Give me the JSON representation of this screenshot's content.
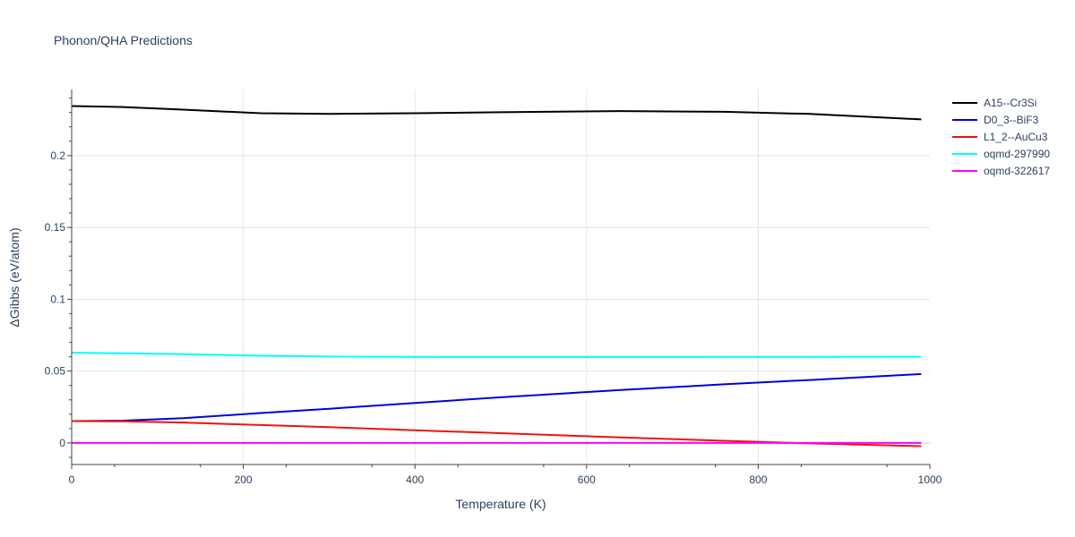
{
  "chart_data": {
    "type": "line",
    "title": "Phonon/QHA Predictions",
    "xlabel": "Temperature (K)",
    "ylabel": "ΔGibbs (eV/atom)",
    "xlim": [
      0,
      1000
    ],
    "ylim": [
      -0.015,
      0.246
    ],
    "xticks": [
      0,
      200,
      400,
      600,
      800,
      1000
    ],
    "xtick_labels": [
      "0",
      "200",
      "400",
      "600",
      "800",
      "1000"
    ],
    "yticks": [
      0,
      0.05,
      0.1,
      0.15,
      0.2
    ],
    "ytick_labels": [
      "0",
      "0.05",
      "0.1",
      "0.15",
      "0.2"
    ],
    "grid": true,
    "legend_position": "top-right outside",
    "x": [
      0,
      60,
      130,
      220,
      300,
      400,
      500,
      640,
      760,
      860,
      990
    ],
    "series": [
      {
        "name": "A15--Cr3Si",
        "color": "#000000",
        "values": [
          0.2345,
          0.2338,
          0.232,
          0.2295,
          0.229,
          0.2295,
          0.2302,
          0.231,
          0.2305,
          0.229,
          0.2252
        ]
      },
      {
        "name": "D0_3--BiF3",
        "color": "#0000dd",
        "values": [
          0.0152,
          0.0155,
          0.0172,
          0.0208,
          0.0238,
          0.0278,
          0.0318,
          0.0368,
          0.0408,
          0.0438,
          0.048
        ]
      },
      {
        "name": "L1_2--AuCu3",
        "color": "#ee1111",
        "values": [
          0.0152,
          0.015,
          0.0142,
          0.0125,
          0.011,
          0.0088,
          0.0068,
          0.0038,
          0.0015,
          -0.0003,
          -0.0022
        ]
      },
      {
        "name": "oqmd-297990",
        "color": "#00ffff",
        "values": [
          0.0628,
          0.0624,
          0.0618,
          0.0607,
          0.0601,
          0.0599,
          0.0598,
          0.0598,
          0.0599,
          0.0599,
          0.06
        ]
      },
      {
        "name": "oqmd-322617",
        "color": "#ff00ff",
        "values": [
          0,
          0,
          0,
          0,
          0,
          0,
          0,
          0,
          0,
          0,
          0
        ]
      }
    ]
  }
}
